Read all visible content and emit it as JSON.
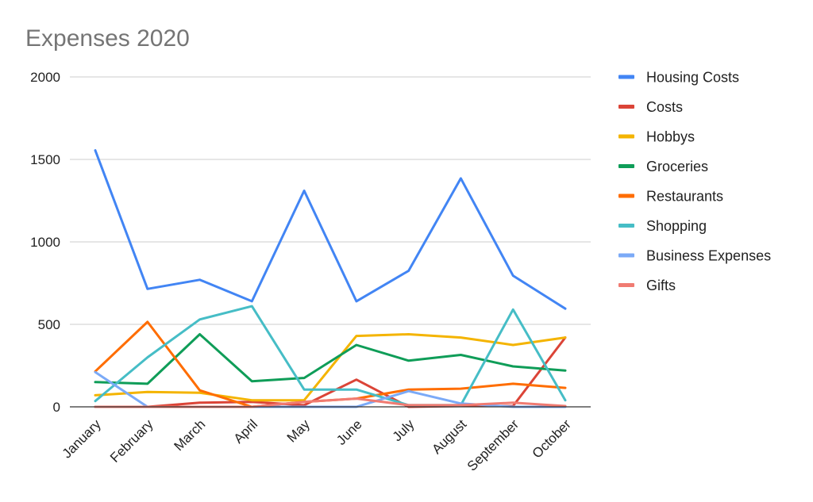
{
  "chart_data": {
    "type": "line",
    "title": "Expenses 2020",
    "xlabel": "",
    "ylabel": "",
    "ylim": [
      0,
      2000
    ],
    "yticks": [
      0,
      500,
      1000,
      1500,
      2000
    ],
    "grid": true,
    "legend_position": "right",
    "categories": [
      "January",
      "February",
      "March",
      "April",
      "May",
      "June",
      "July",
      "August",
      "September",
      "October"
    ],
    "series": [
      {
        "name": "Housing Costs",
        "color": "#4285f4",
        "values": [
          1555,
          715,
          770,
          640,
          1310,
          640,
          825,
          1385,
          795,
          595
        ]
      },
      {
        "name": "Costs",
        "color": "#db4437",
        "values": [
          0,
          0,
          25,
          30,
          10,
          165,
          0,
          5,
          5,
          420
        ]
      },
      {
        "name": "Hobbys",
        "color": "#f4b400",
        "values": [
          70,
          90,
          85,
          40,
          40,
          430,
          440,
          420,
          375,
          420
        ]
      },
      {
        "name": "Groceries",
        "color": "#0f9d58",
        "values": [
          150,
          140,
          440,
          155,
          175,
          375,
          280,
          315,
          245,
          220
        ]
      },
      {
        "name": "Restaurants",
        "color": "#ff6d00",
        "values": [
          215,
          515,
          100,
          0,
          30,
          50,
          105,
          110,
          140,
          115
        ]
      },
      {
        "name": "Shopping",
        "color": "#46bdc6",
        "values": [
          35,
          300,
          530,
          610,
          105,
          105,
          10,
          10,
          590,
          40
        ]
      },
      {
        "name": "Business Expenses",
        "color": "#7baaf7",
        "values": [
          210,
          0,
          0,
          0,
          0,
          0,
          95,
          20,
          0,
          0
        ]
      },
      {
        "name": "Gifts",
        "color": "#f07b72",
        "values": [
          0,
          0,
          0,
          0,
          30,
          50,
          10,
          10,
          25,
          5
        ]
      }
    ]
  }
}
